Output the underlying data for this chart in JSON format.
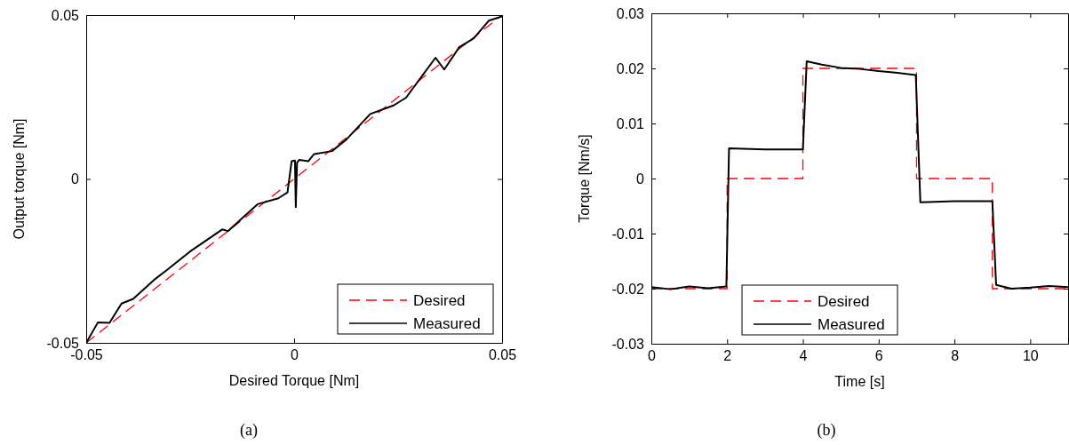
{
  "chart_data": [
    {
      "type": "line",
      "xlabel": "Desired Torque [Nm]",
      "ylabel": "Output torque [Nm]",
      "xlim": [
        -0.05,
        0.05
      ],
      "ylim": [
        -0.05,
        0.05
      ],
      "xticks": [
        -0.05,
        0,
        0.05
      ],
      "yticks": [
        -0.05,
        0,
        0.05
      ],
      "legend": "bottom right",
      "grid": false,
      "annotations": [
        "(a)"
      ],
      "series": [
        {
          "name": "Desired",
          "color": "#ff0000",
          "line_style": "dashed",
          "x": [
            -0.05,
            0.05
          ],
          "values": [
            -0.05,
            0.05
          ]
        },
        {
          "name": "Measured",
          "color": "#000000",
          "line_style": "solid",
          "x": [
            -0.05,
            -0.0472,
            -0.0444,
            -0.0415,
            -0.0387,
            -0.0337,
            -0.0308,
            -0.0251,
            -0.0173,
            -0.0159,
            -0.0088,
            -0.0038,
            -0.0016,
            -0.0006,
            0.0002,
            0.0004,
            0.0007,
            0.0012,
            0.0034,
            0.0048,
            0.0091,
            0.0126,
            0.0183,
            0.024,
            0.0269,
            0.0311,
            0.034,
            0.0361,
            0.0397,
            0.0432,
            0.0468,
            0.05
          ],
          "values": [
            -0.05,
            -0.0438,
            -0.0439,
            -0.038,
            -0.0366,
            -0.0308,
            -0.028,
            -0.0222,
            -0.0154,
            -0.0159,
            -0.0077,
            -0.0059,
            -0.0041,
            0.0054,
            0.0056,
            -0.0086,
            0.005,
            0.0058,
            0.0054,
            0.0076,
            0.0085,
            0.0121,
            0.0198,
            0.0225,
            0.0248,
            0.032,
            0.037,
            0.0334,
            0.0402,
            0.0429,
            0.0483,
            0.0496
          ]
        }
      ]
    },
    {
      "type": "line",
      "xlabel": "Time [s]",
      "ylabel": "Torque [Nm/s]",
      "xlim": [
        0,
        11
      ],
      "ylim": [
        -0.03,
        0.03
      ],
      "xticks": [
        0,
        2,
        4,
        6,
        8,
        10
      ],
      "yticks": [
        -0.03,
        -0.02,
        -0.01,
        0,
        0.01,
        0.02,
        0.03
      ],
      "legend": "bottom",
      "grid": false,
      "annotations": [
        "(b)"
      ],
      "series": [
        {
          "name": "Desired",
          "type": "step",
          "color": "#ff0000",
          "line_style": "dashed",
          "x": [
            0,
            2,
            4,
            7,
            9,
            11
          ],
          "values": [
            -0.02,
            0,
            0.02,
            0,
            -0.02,
            -0.02
          ]
        },
        {
          "name": "Measured",
          "color": "#000000",
          "line_style": "solid",
          "x": [
            0,
            0.5,
            1,
            1.5,
            1.98,
            2.05,
            3,
            4,
            4.1,
            4.5,
            5,
            5.5,
            6,
            6.5,
            6.98,
            7.1,
            8,
            9,
            9.1,
            9.5,
            10,
            10.5,
            11
          ],
          "values": [
            -0.0197,
            -0.0201,
            -0.0196,
            -0.0199,
            -0.0196,
            0.0055,
            0.0053,
            0.0053,
            0.0213,
            0.0207,
            0.0201,
            0.0199,
            0.0195,
            0.0192,
            0.0188,
            -0.0043,
            -0.0041,
            -0.0041,
            -0.0193,
            -0.02,
            -0.0198,
            -0.0195,
            -0.0197
          ]
        }
      ]
    }
  ]
}
